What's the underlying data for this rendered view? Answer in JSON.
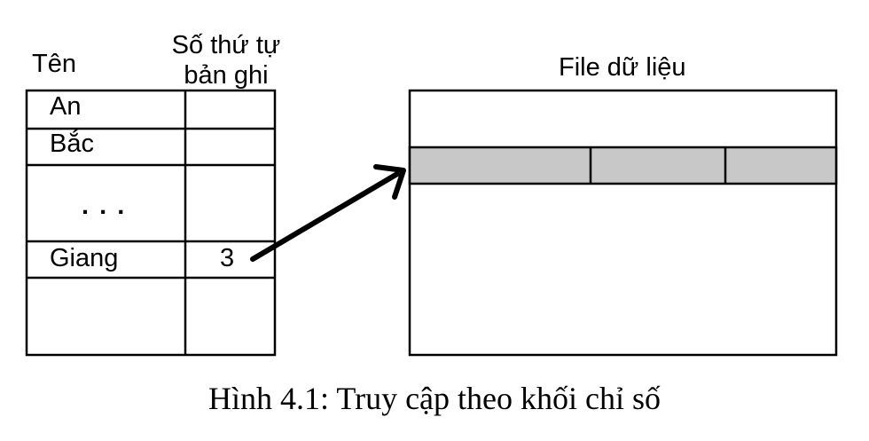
{
  "index_table": {
    "col_name_header": "Tên",
    "col_record_header_line1": "Số thứ tự",
    "col_record_header_line2": "bản ghi",
    "rows": [
      {
        "name": "An",
        "record": ""
      },
      {
        "name": "Bắc",
        "record": ""
      },
      {
        "name": ". . .",
        "record": ""
      },
      {
        "name": "Giang",
        "record": "3"
      },
      {
        "name": "",
        "record": ""
      }
    ]
  },
  "data_file": {
    "label": "File dữ liệu",
    "highlight_color": "#c8c8c8"
  },
  "caption": "Hình 4.1: Truy cập theo khối chỉ số"
}
